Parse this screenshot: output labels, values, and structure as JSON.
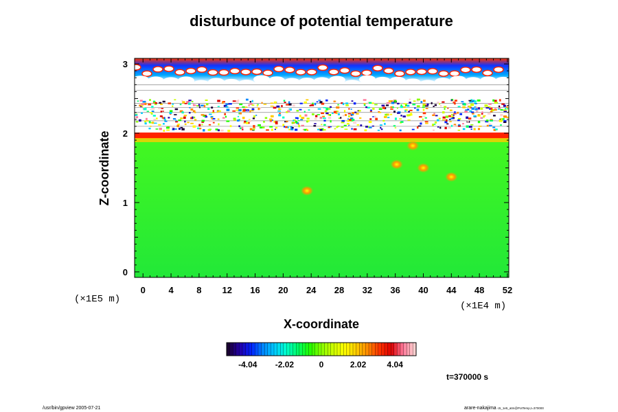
{
  "chart_data": {
    "type": "heatmap",
    "title": "disturbunce of potential temperature",
    "xlabel": "X-coordinate",
    "ylabel": "Z-coordinate",
    "x_scale_label": "(×1E4 m)",
    "y_scale_label": "(×1E5 m)",
    "xlim": [
      -1.2,
      52.2
    ],
    "ylim": [
      -0.08,
      3.08
    ],
    "x_ticks": [
      "0",
      "4",
      "8",
      "12",
      "16",
      "20",
      "24",
      "28",
      "32",
      "36",
      "40",
      "44",
      "48",
      "52"
    ],
    "y_ticks": [
      "0",
      "1",
      "2",
      "3"
    ],
    "colorbar": {
      "range": [
        -5.2,
        5.2
      ],
      "tick_labels": [
        "-4.04",
        "-2.02",
        "0",
        "2.02",
        "4.04"
      ],
      "tick_values": [
        -4.04,
        -2.02,
        0,
        2.02,
        4.04
      ],
      "colors": [
        "#1a0033",
        "#2200aa",
        "#0022ff",
        "#0088ff",
        "#00ccff",
        "#00ffcc",
        "#00ff66",
        "#22ff00",
        "#88ff00",
        "#ccff00",
        "#ffff00",
        "#ffcc00",
        "#ff8800",
        "#ff3300",
        "#dd0000",
        "#ff7799",
        "#ffd0d0"
      ]
    },
    "regions": [
      {
        "z": [
          0,
          1.0
        ],
        "value": 0.15,
        "description_color": "#22e833"
      },
      {
        "z": [
          1.0,
          1.75
        ],
        "value": 0.5,
        "description_color": "#5aff10"
      },
      {
        "z": [
          1.75,
          1.95
        ],
        "value": 1.0,
        "description_color": "#aaff00"
      },
      {
        "z": [
          1.95,
          2.0
        ],
        "value": 4.5,
        "description_color": "#ff2200"
      },
      {
        "z": [
          2.0,
          2.7
        ],
        "value": 0.0,
        "description_color": "#ffffff"
      },
      {
        "z": [
          2.7,
          3.05
        ],
        "value": -3.5,
        "description_color": "#1144ff"
      }
    ],
    "hotspots": [
      {
        "x": 23.4,
        "z": 1.17,
        "value": 3.2
      },
      {
        "x": 38.5,
        "z": 1.82,
        "value": 4.2
      },
      {
        "x": 40.0,
        "z": 1.5,
        "value": 3.5
      },
      {
        "x": 44.0,
        "z": 1.37,
        "value": 4.4
      },
      {
        "x": 36.2,
        "z": 1.55,
        "value": 2.0
      }
    ]
  },
  "annotations": {
    "time": "t=370000 s",
    "footer_left": "/usr/bin/gpview 2005-07-21",
    "footer_right": "arare-nakajima",
    "footer_right_small": "c5_1e5_atm@PotTemp,t=370000"
  }
}
